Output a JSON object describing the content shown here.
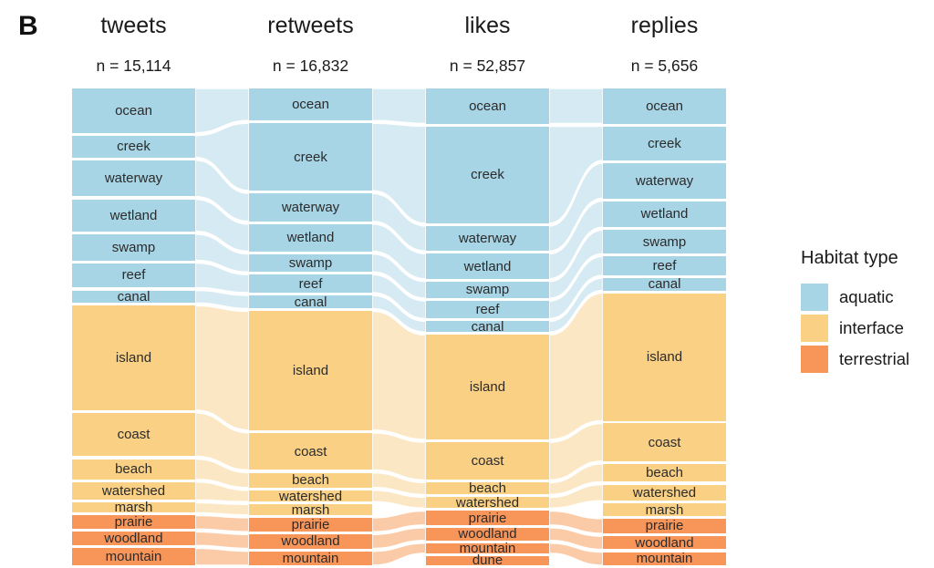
{
  "panel_label": "B",
  "legend": {
    "title": "Habitat type",
    "items": [
      {
        "label": "aquatic",
        "color": "#a8d5e5"
      },
      {
        "label": "interface",
        "color": "#f9d084"
      },
      {
        "label": "terrestrial",
        "color": "#f8965a"
      }
    ]
  },
  "chart_data": {
    "type": "alluvial",
    "title": "",
    "legend_position": "right",
    "colors": {
      "aquatic": {
        "node": "#a8d5e5",
        "flow": "#d5eaf2"
      },
      "interface": {
        "node": "#f9d084",
        "flow": "#fbe7c4"
      },
      "terrestrial": {
        "node": "#f8965a",
        "flow": "#fbcba8"
      }
    },
    "columns": [
      {
        "label": "tweets",
        "n_label": "n = 15,114",
        "n": 15114,
        "segments": [
          {
            "name": "ocean",
            "type": "aquatic",
            "share_pct": 10.1
          },
          {
            "name": "creek",
            "type": "aquatic",
            "share_pct": 5.0
          },
          {
            "name": "waterway",
            "type": "aquatic",
            "share_pct": 8.3
          },
          {
            "name": "wetland",
            "type": "aquatic",
            "share_pct": 7.3
          },
          {
            "name": "swamp",
            "type": "aquatic",
            "share_pct": 6.0
          },
          {
            "name": "reef",
            "type": "aquatic",
            "share_pct": 5.6
          },
          {
            "name": "canal",
            "type": "aquatic",
            "share_pct": 2.9
          },
          {
            "name": "island",
            "type": "interface",
            "share_pct": 23.8
          },
          {
            "name": "coast",
            "type": "interface",
            "share_pct": 9.9
          },
          {
            "name": "beach",
            "type": "interface",
            "share_pct": 4.6
          },
          {
            "name": "watershed",
            "type": "interface",
            "share_pct": 4.1
          },
          {
            "name": "marsh",
            "type": "interface",
            "share_pct": 2.3
          },
          {
            "name": "prairie",
            "type": "terrestrial",
            "share_pct": 3.1
          },
          {
            "name": "woodland",
            "type": "terrestrial",
            "share_pct": 3.1
          },
          {
            "name": "mountain",
            "type": "terrestrial",
            "share_pct": 3.9
          }
        ]
      },
      {
        "label": "retweets",
        "n_label": "n = 16,832",
        "n": 16832,
        "segments": [
          {
            "name": "ocean",
            "type": "aquatic",
            "share_pct": 7.3
          },
          {
            "name": "creek",
            "type": "aquatic",
            "share_pct": 15.4
          },
          {
            "name": "waterway",
            "type": "aquatic",
            "share_pct": 6.4
          },
          {
            "name": "wetland",
            "type": "aquatic",
            "share_pct": 6.2
          },
          {
            "name": "swamp",
            "type": "aquatic",
            "share_pct": 4.1
          },
          {
            "name": "reef",
            "type": "aquatic",
            "share_pct": 4.1
          },
          {
            "name": "canal",
            "type": "aquatic",
            "share_pct": 3.0
          },
          {
            "name": "island",
            "type": "interface",
            "share_pct": 27.1
          },
          {
            "name": "coast",
            "type": "interface",
            "share_pct": 8.5
          },
          {
            "name": "beach",
            "type": "interface",
            "share_pct": 3.4
          },
          {
            "name": "watershed",
            "type": "interface",
            "share_pct": 2.6
          },
          {
            "name": "marsh",
            "type": "interface",
            "share_pct": 2.4
          },
          {
            "name": "prairie",
            "type": "terrestrial",
            "share_pct": 3.2
          },
          {
            "name": "woodland",
            "type": "terrestrial",
            "share_pct": 3.2
          },
          {
            "name": "mountain",
            "type": "terrestrial",
            "share_pct": 3.2
          }
        ]
      },
      {
        "label": "likes",
        "n_label": "n = 52,857",
        "n": 52857,
        "segments": [
          {
            "name": "ocean",
            "type": "aquatic",
            "share_pct": 8.0
          },
          {
            "name": "creek",
            "type": "aquatic",
            "share_pct": 22.1
          },
          {
            "name": "waterway",
            "type": "aquatic",
            "share_pct": 5.7
          },
          {
            "name": "wetland",
            "type": "aquatic",
            "share_pct": 5.7
          },
          {
            "name": "swamp",
            "type": "aquatic",
            "share_pct": 3.8
          },
          {
            "name": "reef",
            "type": "aquatic",
            "share_pct": 4.0
          },
          {
            "name": "canal",
            "type": "aquatic",
            "share_pct": 2.5
          },
          {
            "name": "island",
            "type": "interface",
            "share_pct": 23.8
          },
          {
            "name": "coast",
            "type": "interface",
            "share_pct": 8.6
          },
          {
            "name": "beach",
            "type": "interface",
            "share_pct": 2.7
          },
          {
            "name": "watershed",
            "type": "interface",
            "share_pct": 2.5
          },
          {
            "name": "prairie",
            "type": "terrestrial",
            "share_pct": 3.2
          },
          {
            "name": "woodland",
            "type": "terrestrial",
            "share_pct": 2.9
          },
          {
            "name": "mountain",
            "type": "terrestrial",
            "share_pct": 2.3
          },
          {
            "name": "dune",
            "type": "terrestrial",
            "share_pct": 2.1
          }
        ]
      },
      {
        "label": "replies",
        "n_label": "n = 5,656",
        "n": 5656,
        "segments": [
          {
            "name": "ocean",
            "type": "aquatic",
            "share_pct": 8.0
          },
          {
            "name": "creek",
            "type": "aquatic",
            "share_pct": 7.8
          },
          {
            "name": "waterway",
            "type": "aquatic",
            "share_pct": 8.0
          },
          {
            "name": "wetland",
            "type": "aquatic",
            "share_pct": 6.0
          },
          {
            "name": "swamp",
            "type": "aquatic",
            "share_pct": 5.4
          },
          {
            "name": "reef",
            "type": "aquatic",
            "share_pct": 4.3
          },
          {
            "name": "canal",
            "type": "aquatic",
            "share_pct": 2.8
          },
          {
            "name": "island",
            "type": "interface",
            "share_pct": 29.1
          },
          {
            "name": "coast",
            "type": "interface",
            "share_pct": 8.6
          },
          {
            "name": "beach",
            "type": "interface",
            "share_pct": 4.1
          },
          {
            "name": "watershed",
            "type": "interface",
            "share_pct": 3.7
          },
          {
            "name": "marsh",
            "type": "interface",
            "share_pct": 2.8
          },
          {
            "name": "prairie",
            "type": "terrestrial",
            "share_pct": 3.4
          },
          {
            "name": "woodland",
            "type": "terrestrial",
            "share_pct": 3.0
          },
          {
            "name": "mountain",
            "type": "terrestrial",
            "share_pct": 3.0
          }
        ]
      }
    ]
  }
}
